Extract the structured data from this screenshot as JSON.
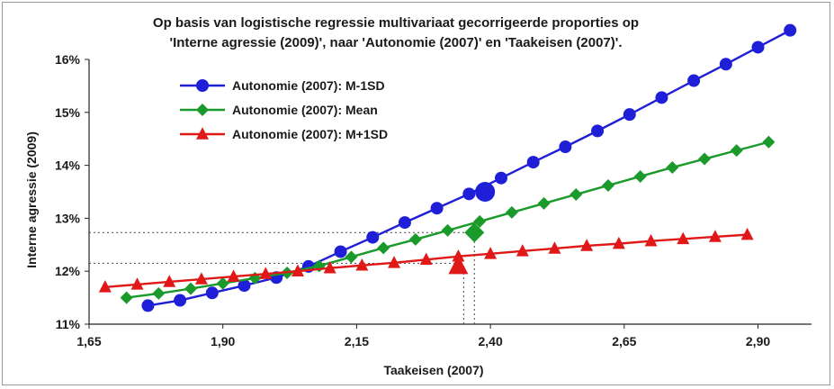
{
  "chart_data": {
    "type": "line",
    "title_lines": [
      "Op basis van logistische regressie multivariaat gecorrigeerde proporties op",
      "'Interne agressie (2009)', naar 'Autonomie (2007)' en 'Taakeisen (2007)'."
    ],
    "xlabel": "Taakeisen (2007)",
    "ylabel": "Interne agressie (2009)",
    "xlim": [
      1.65,
      3.0
    ],
    "ylim": [
      0.11,
      0.16
    ],
    "x_ticks": [
      1.65,
      1.9,
      2.15,
      2.4,
      2.65,
      2.9
    ],
    "x_tick_labels": [
      "1,65",
      "1,90",
      "2,15",
      "2,40",
      "2,65",
      "2,90"
    ],
    "y_ticks": [
      0.11,
      0.12,
      0.13,
      0.14,
      0.15,
      0.16
    ],
    "y_tick_labels": [
      "11%",
      "12%",
      "13%",
      "14%",
      "15%",
      "16%"
    ],
    "grid": false,
    "legend_position": "top-left",
    "series": [
      {
        "name": "Autonomie (2007): M-1SD",
        "color": "#1f1fd8",
        "marker": "circle",
        "x": [
          1.76,
          1.82,
          1.88,
          1.94,
          2.0,
          2.06,
          2.12,
          2.18,
          2.24,
          2.3,
          2.36,
          2.42,
          2.48,
          2.54,
          2.6,
          2.66,
          2.72,
          2.78,
          2.84,
          2.9,
          2.96
        ],
        "y": [
          0.1135,
          0.1145,
          0.1159,
          0.1173,
          0.1188,
          0.1209,
          0.1237,
          0.1264,
          0.1292,
          0.1319,
          0.1346,
          0.1376,
          0.1406,
          0.1435,
          0.1465,
          0.1496,
          0.1528,
          0.156,
          0.1591,
          0.1623,
          0.1655
        ]
      },
      {
        "name": "Autonomie (2007): Mean",
        "color": "#1a9a2a",
        "marker": "diamond",
        "x": [
          1.72,
          1.78,
          1.84,
          1.9,
          1.96,
          2.02,
          2.08,
          2.14,
          2.2,
          2.26,
          2.32,
          2.38,
          2.44,
          2.5,
          2.56,
          2.62,
          2.68,
          2.74,
          2.8,
          2.86,
          2.92
        ],
        "y": [
          0.115,
          0.1158,
          0.1167,
          0.1177,
          0.1187,
          0.1197,
          0.121,
          0.1227,
          0.1244,
          0.126,
          0.1277,
          0.1294,
          0.1311,
          0.1328,
          0.1345,
          0.1362,
          0.1379,
          0.1396,
          0.1412,
          0.1428,
          0.1444
        ]
      },
      {
        "name": "Autonomie (2007): M+1SD",
        "color": "#e01818",
        "marker": "triangle",
        "x": [
          1.68,
          1.74,
          1.8,
          1.86,
          1.92,
          1.98,
          2.04,
          2.1,
          2.16,
          2.22,
          2.28,
          2.34,
          2.4,
          2.46,
          2.52,
          2.58,
          2.64,
          2.7,
          2.76,
          2.82,
          2.88
        ],
        "y": [
          0.117,
          0.1175,
          0.118,
          0.1185,
          0.119,
          0.1195,
          0.12,
          0.1206,
          0.1211,
          0.1216,
          0.1222,
          0.1228,
          0.1233,
          0.1238,
          0.1243,
          0.1248,
          0.1252,
          0.1257,
          0.1261,
          0.1265,
          0.1269
        ]
      }
    ],
    "highlighted_points": [
      {
        "series": "Autonomie (2007): M-1SD",
        "x": 2.39,
        "y": 0.135
      },
      {
        "series": "Autonomie (2007): Mean",
        "x": 2.37,
        "y": 0.1273
      },
      {
        "series": "Autonomie (2007): M+1SD",
        "x": 2.34,
        "y": 0.121
      }
    ],
    "reference_lines": [
      {
        "y": 0.1273,
        "x_end": 2.37
      },
      {
        "y": 0.1215,
        "x_end": 2.34
      },
      {
        "x": 2.35,
        "y_end": 0.121
      },
      {
        "x": 2.37,
        "y_end": 0.1273
      }
    ]
  }
}
